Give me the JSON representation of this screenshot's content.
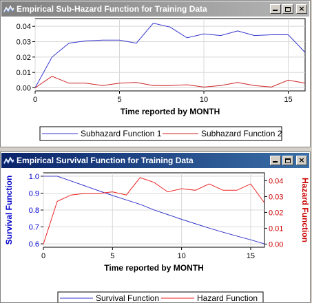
{
  "windows": [
    {
      "title": "Empirical Sub-Hazard Function for Training Data",
      "active": false,
      "buttons": [
        "minimize",
        "maximize",
        "close"
      ]
    },
    {
      "title": "Empirical Survival Function for Training Data",
      "active": true,
      "buttons": [
        "minimize",
        "maximize",
        "close"
      ]
    }
  ],
  "icons": {
    "window": "chart-window-icon",
    "minimize": "minimize-icon",
    "maximize": "maximize-icon",
    "close": "close-icon"
  },
  "chart_data": [
    {
      "type": "line",
      "title": "",
      "xlabel": "Time reported by MONTH",
      "ylabel": "",
      "xlim": [
        0,
        16
      ],
      "ylim": [
        -0.002,
        0.045
      ],
      "xticks": [
        0,
        5,
        10,
        15
      ],
      "yticks": [
        0.0,
        0.01,
        0.02,
        0.03,
        0.04
      ],
      "ytick_labels": [
        "0.00",
        "0.01",
        "0.02",
        "0.03",
        "0.04"
      ],
      "grid": true,
      "legend_position": "bottom",
      "x": [
        0,
        1,
        2,
        3,
        4,
        5,
        6,
        7,
        8,
        9,
        10,
        11,
        12,
        13,
        14,
        15,
        16
      ],
      "series": [
        {
          "name": "Subhazard Function 1",
          "color": "#3333cc",
          "values": [
            0.0,
            0.02,
            0.029,
            0.0305,
            0.031,
            0.031,
            0.029,
            0.042,
            0.0395,
            0.0325,
            0.035,
            0.034,
            0.037,
            0.034,
            0.0345,
            0.0345,
            0.023
          ]
        },
        {
          "name": "Subhazard Function 2",
          "color": "#cc2222",
          "values": [
            0.0,
            0.0075,
            0.003,
            0.003,
            0.0015,
            0.003,
            0.0035,
            0.0015,
            0.0015,
            0.002,
            0.0005,
            0.0015,
            0.0035,
            0.0015,
            0.0005,
            0.005,
            0.003
          ]
        }
      ]
    },
    {
      "type": "line",
      "title": "",
      "xlabel": "Time reported by MONTH",
      "ylabel": "Survival Function",
      "y2label": "Hazard Function",
      "xlim": [
        0,
        16
      ],
      "ylim": [
        0.58,
        1.02
      ],
      "y2lim": [
        -0.002,
        0.045
      ],
      "xticks": [
        0,
        5,
        10,
        15
      ],
      "yticks": [
        0.6,
        0.7,
        0.8,
        0.9,
        1.0
      ],
      "ytick_labels": [
        "0.6",
        "0.7",
        "0.8",
        "0.9",
        "1.0"
      ],
      "y2ticks": [
        0.0,
        0.01,
        0.02,
        0.03,
        0.04
      ],
      "y2tick_labels": [
        "0.00",
        "0.01",
        "0.02",
        "0.03",
        "0.04"
      ],
      "ylabel_color": "#0000cc",
      "y2label_color": "#cc0000",
      "grid": true,
      "legend_position": "bottom",
      "x": [
        0,
        1,
        2,
        3,
        4,
        5,
        6,
        7,
        8,
        9,
        10,
        11,
        12,
        13,
        14,
        15,
        16
      ],
      "series": [
        {
          "name": "Survival Function",
          "axis": "left",
          "color": "#3333cc",
          "values": [
            1.0,
            1.0,
            0.972,
            0.943,
            0.914,
            0.886,
            0.86,
            0.834,
            0.801,
            0.773,
            0.745,
            0.719,
            0.693,
            0.669,
            0.646,
            0.624,
            0.6
          ]
        },
        {
          "name": "Hazard Function",
          "axis": "right",
          "color": "#ee2222",
          "values": [
            0.0,
            0.027,
            0.031,
            0.032,
            0.032,
            0.033,
            0.031,
            0.042,
            0.039,
            0.033,
            0.035,
            0.034,
            0.038,
            0.034,
            0.034,
            0.038,
            0.026
          ]
        }
      ]
    }
  ]
}
